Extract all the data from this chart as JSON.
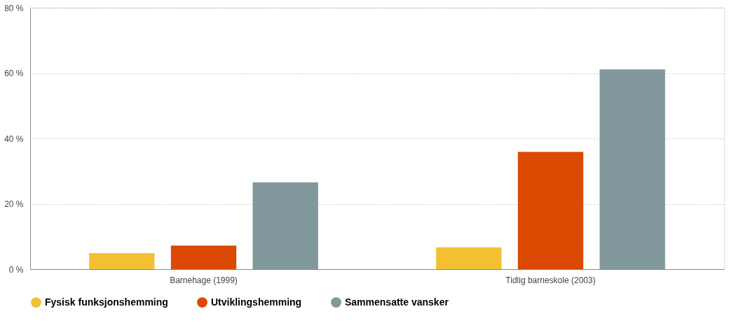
{
  "chart_data": {
    "type": "bar",
    "categories": [
      "Barnehage (1999)",
      "Tidlig barneskole (2003)"
    ],
    "series": [
      {
        "name": "Fysisk funksjonshemming",
        "color": "#f4c033",
        "values": [
          4.9,
          6.7
        ]
      },
      {
        "name": "Utviklingshemming",
        "color": "#db4a02",
        "values": [
          7.2,
          35.9
        ]
      },
      {
        "name": "Sammensatte vansker",
        "color": "#81999c",
        "values": [
          26.6,
          61.1
        ]
      }
    ],
    "ylim": [
      0,
      80
    ],
    "yticks": [
      {
        "value": 0,
        "label": "0 %"
      },
      {
        "value": 20,
        "label": "20 %"
      },
      {
        "value": 40,
        "label": "40 %"
      },
      {
        "value": 60,
        "label": "60 %"
      },
      {
        "value": 80,
        "label": "80 %"
      }
    ],
    "grid": "y",
    "legend": "bottom"
  }
}
